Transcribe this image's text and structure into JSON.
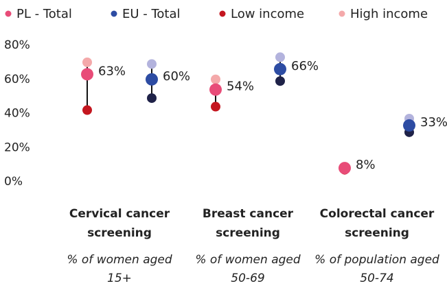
{
  "chart_data": {
    "type": "dot-range",
    "categories": [
      "Cervical cancer screening",
      "Breast cancer screening",
      "Colorectal cancer screening"
    ],
    "category_notes": [
      "% of women aged 15+",
      "% of women aged 50-69",
      "% of population aged 50-74"
    ],
    "series": [
      {
        "name": "PL - Total",
        "color": "#e84c78",
        "values": [
          63,
          54,
          8
        ],
        "value_labels": [
          "63%",
          "54%",
          "8%"
        ]
      },
      {
        "name": "EU - Total",
        "color": "#2d4ca3",
        "values": [
          60,
          66,
          33
        ],
        "value_labels": [
          "60%",
          "66%",
          "33%"
        ]
      },
      {
        "name": "Low income",
        "color": "#c4161f",
        "values": [
          42,
          44,
          7
        ],
        "eu_color": "#1f2248",
        "eu_values": [
          49,
          59,
          29
        ]
      },
      {
        "name": "High income",
        "color": "#f4a9aa",
        "values": [
          70,
          60,
          8
        ],
        "eu_color": "#b3b3dd",
        "eu_values": [
          69,
          73,
          37
        ]
      }
    ],
    "ylim": [
      0,
      80
    ],
    "yticks": [
      {
        "value": 0,
        "label": "0%"
      },
      {
        "value": 20,
        "label": "20%"
      },
      {
        "value": 40,
        "label": "40%"
      },
      {
        "value": 60,
        "label": "60%"
      },
      {
        "value": 80,
        "label": "80%"
      }
    ],
    "grid": false
  }
}
